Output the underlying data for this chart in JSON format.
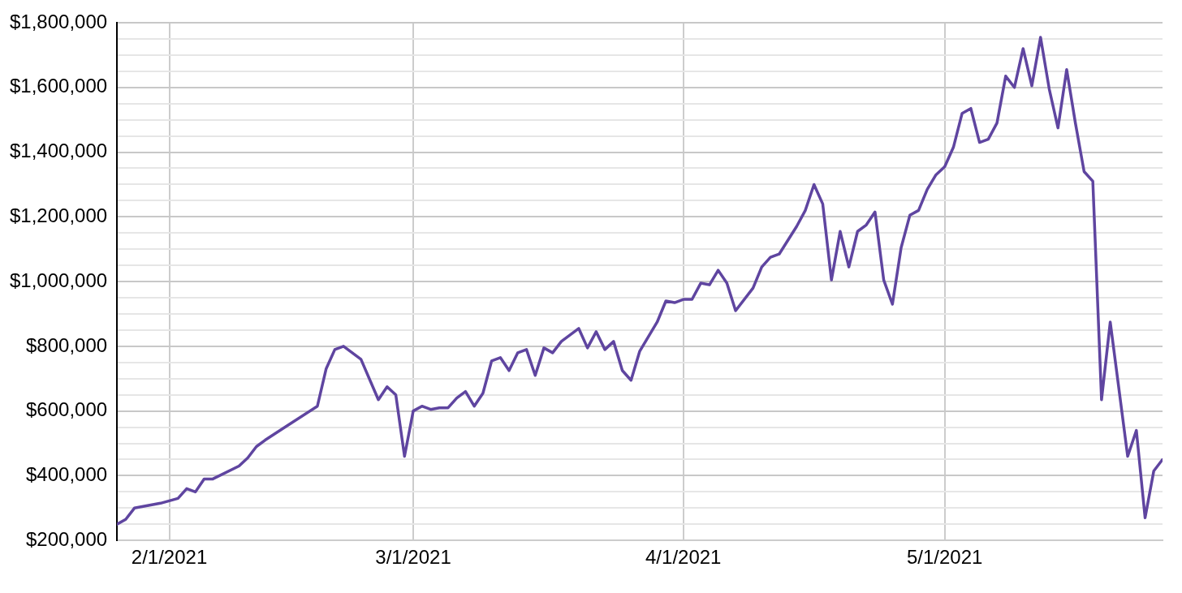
{
  "chart_data": {
    "type": "line",
    "x": [
      "2021-01-26",
      "2021-01-27",
      "2021-01-28",
      "2021-01-31",
      "2021-02-02",
      "2021-02-03",
      "2021-02-04",
      "2021-02-05",
      "2021-02-06",
      "2021-02-09",
      "2021-02-10",
      "2021-02-11",
      "2021-02-12",
      "2021-02-14",
      "2021-02-18",
      "2021-02-19",
      "2021-02-20",
      "2021-02-21",
      "2021-02-23",
      "2021-02-25",
      "2021-02-26",
      "2021-02-27",
      "2021-02-28",
      "2021-03-01",
      "2021-03-02",
      "2021-03-03",
      "2021-03-04",
      "2021-03-05",
      "2021-03-06",
      "2021-03-07",
      "2021-03-08",
      "2021-03-09",
      "2021-03-10",
      "2021-03-11",
      "2021-03-12",
      "2021-03-13",
      "2021-03-14",
      "2021-03-15",
      "2021-03-16",
      "2021-03-17",
      "2021-03-18",
      "2021-03-19",
      "2021-03-20",
      "2021-03-21",
      "2021-03-22",
      "2021-03-23",
      "2021-03-24",
      "2021-03-25",
      "2021-03-26",
      "2021-03-27",
      "2021-03-28",
      "2021-03-29",
      "2021-03-30",
      "2021-03-31",
      "2021-04-01",
      "2021-04-02",
      "2021-04-03",
      "2021-04-04",
      "2021-04-05",
      "2021-04-06",
      "2021-04-07",
      "2021-04-09",
      "2021-04-10",
      "2021-04-11",
      "2021-04-12",
      "2021-04-14",
      "2021-04-15",
      "2021-04-16",
      "2021-04-17",
      "2021-04-18",
      "2021-04-19",
      "2021-04-20",
      "2021-04-21",
      "2021-04-22",
      "2021-04-23",
      "2021-04-24",
      "2021-04-25",
      "2021-04-26",
      "2021-04-27",
      "2021-04-28",
      "2021-04-29",
      "2021-04-30",
      "2021-05-01",
      "2021-05-02",
      "2021-05-03",
      "2021-05-04",
      "2021-05-05",
      "2021-05-06",
      "2021-05-07",
      "2021-05-08",
      "2021-05-09",
      "2021-05-10",
      "2021-05-11",
      "2021-05-12",
      "2021-05-13",
      "2021-05-14",
      "2021-05-15",
      "2021-05-16",
      "2021-05-17",
      "2021-05-18",
      "2021-05-19",
      "2021-05-20",
      "2021-05-22",
      "2021-05-23",
      "2021-05-24",
      "2021-05-25",
      "2021-05-26"
    ],
    "series": [
      {
        "color": "#5f45a0",
        "values": [
          250000,
          265000,
          300000,
          315000,
          330000,
          360000,
          350000,
          390000,
          390000,
          430000,
          455000,
          490000,
          510000,
          545000,
          615000,
          730000,
          790000,
          800000,
          760000,
          635000,
          675000,
          650000,
          460000,
          600000,
          615000,
          605000,
          610000,
          610000,
          640000,
          660000,
          615000,
          655000,
          755000,
          765000,
          725000,
          780000,
          790000,
          710000,
          795000,
          780000,
          815000,
          835000,
          855000,
          795000,
          845000,
          790000,
          815000,
          725000,
          695000,
          785000,
          830000,
          875000,
          940000,
          935000,
          945000,
          945000,
          995000,
          990000,
          1035000,
          995000,
          910000,
          980000,
          1045000,
          1075000,
          1085000,
          1170000,
          1220000,
          1300000,
          1240000,
          1005000,
          1155000,
          1045000,
          1155000,
          1175000,
          1215000,
          1005000,
          930000,
          1105000,
          1205000,
          1220000,
          1285000,
          1330000,
          1355000,
          1415000,
          1520000,
          1535000,
          1430000,
          1440000,
          1490000,
          1635000,
          1600000,
          1720000,
          1605000,
          1755000,
          1595000,
          1475000,
          1655000,
          1490000,
          1340000,
          1310000,
          635000,
          875000,
          460000,
          540000,
          270000,
          415000,
          450000
        ]
      }
    ],
    "xlim": [
      "2021-01-26",
      "2021-05-26"
    ],
    "xticks": [
      {
        "value": "2021-02-01",
        "label": "2/1/2021"
      },
      {
        "value": "2021-03-01",
        "label": "3/1/2021"
      },
      {
        "value": "2021-04-01",
        "label": "4/1/2021"
      },
      {
        "value": "2021-05-01",
        "label": "5/1/2021"
      }
    ],
    "ylim": [
      200000,
      1800000
    ],
    "yticks": [
      {
        "value": 200000,
        "label": "$200,000"
      },
      {
        "value": 250000,
        "label": null
      },
      {
        "value": 300000,
        "label": null
      },
      {
        "value": 350000,
        "label": null
      },
      {
        "value": 400000,
        "label": "$400,000"
      },
      {
        "value": 450000,
        "label": null
      },
      {
        "value": 500000,
        "label": null
      },
      {
        "value": 550000,
        "label": null
      },
      {
        "value": 600000,
        "label": "$600,000"
      },
      {
        "value": 650000,
        "label": null
      },
      {
        "value": 700000,
        "label": null
      },
      {
        "value": 750000,
        "label": null
      },
      {
        "value": 800000,
        "label": "$800,000"
      },
      {
        "value": 850000,
        "label": null
      },
      {
        "value": 900000,
        "label": null
      },
      {
        "value": 950000,
        "label": null
      },
      {
        "value": 1000000,
        "label": "$1,000,000"
      },
      {
        "value": 1050000,
        "label": null
      },
      {
        "value": 1100000,
        "label": null
      },
      {
        "value": 1150000,
        "label": null
      },
      {
        "value": 1200000,
        "label": "$1,200,000"
      },
      {
        "value": 1250000,
        "label": null
      },
      {
        "value": 1300000,
        "label": null
      },
      {
        "value": 1350000,
        "label": null
      },
      {
        "value": 1400000,
        "label": "$1,400,000"
      },
      {
        "value": 1450000,
        "label": null
      },
      {
        "value": 1500000,
        "label": null
      },
      {
        "value": 1550000,
        "label": null
      },
      {
        "value": 1600000,
        "label": "$1,600,000"
      },
      {
        "value": 1650000,
        "label": null
      },
      {
        "value": 1700000,
        "label": null
      },
      {
        "value": 1750000,
        "label": null
      },
      {
        "value": 1800000,
        "label": "$1,800,000"
      }
    ],
    "grid": true,
    "marker": "none",
    "line_style": "solid",
    "legend": false
  }
}
